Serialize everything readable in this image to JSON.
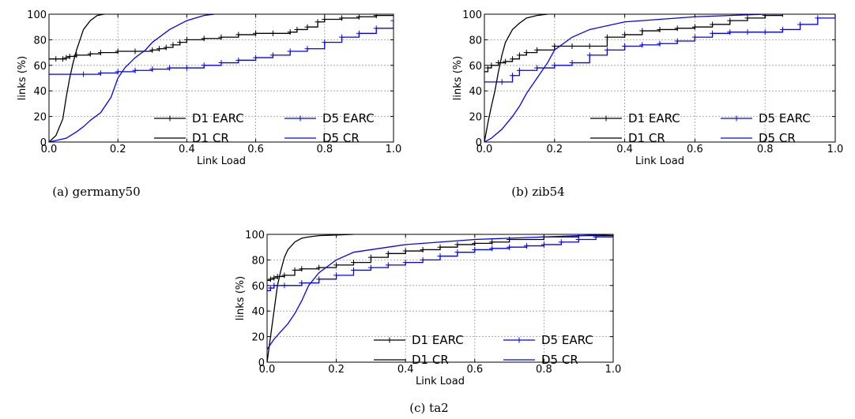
{
  "chart_data": [
    {
      "type": "line",
      "caption": "(a) germany50",
      "xlabel": "Link Load",
      "ylabel": "links (%)",
      "xlim": [
        0,
        1.0
      ],
      "ylim": [
        0,
        100
      ],
      "xticks": [
        "0.0",
        "0.2",
        "0.4",
        "0.6",
        "0.8",
        "1.0"
      ],
      "yticks": [
        "0",
        "20",
        "40",
        "60",
        "80",
        "100"
      ],
      "grid": true,
      "legend": "lower-right",
      "series": [
        {
          "name": "D1 EARC",
          "color": "#000000",
          "markers": true,
          "step": true,
          "x": [
            0,
            0.02,
            0.04,
            0.05,
            0.06,
            0.08,
            0.12,
            0.15,
            0.2,
            0.25,
            0.3,
            0.32,
            0.34,
            0.36,
            0.38,
            0.4,
            0.45,
            0.5,
            0.55,
            0.6,
            0.65,
            0.7,
            0.72,
            0.75,
            0.78,
            0.8,
            0.85,
            0.9,
            0.95,
            1.0
          ],
          "y": [
            65,
            65,
            65,
            66,
            67,
            68,
            69,
            70,
            71,
            71,
            72,
            73,
            74,
            76,
            78,
            80,
            81,
            82,
            84,
            85,
            85,
            86,
            88,
            90,
            94,
            96,
            97,
            98,
            99,
            100
          ]
        },
        {
          "name": "D1 CR",
          "color": "#000000",
          "markers": false,
          "step": false,
          "x": [
            0,
            0.02,
            0.04,
            0.05,
            0.06,
            0.07,
            0.08,
            0.09,
            0.1,
            0.12,
            0.14,
            0.16
          ],
          "y": [
            0,
            5,
            18,
            35,
            50,
            62,
            72,
            80,
            88,
            95,
            99,
            100
          ]
        },
        {
          "name": "D5 EARC",
          "color": "#0000ff",
          "markers": true,
          "step": true,
          "x": [
            0,
            0.1,
            0.15,
            0.2,
            0.25,
            0.3,
            0.35,
            0.4,
            0.45,
            0.5,
            0.55,
            0.6,
            0.65,
            0.7,
            0.75,
            0.8,
            0.85,
            0.9,
            0.95,
            1.0
          ],
          "y": [
            53,
            53,
            54,
            55,
            56,
            57,
            58,
            58,
            60,
            62,
            64,
            66,
            68,
            71,
            73,
            78,
            82,
            85,
            89,
            95
          ]
        },
        {
          "name": "D5 CR",
          "color": "#0000ff",
          "markers": false,
          "step": false,
          "x": [
            0,
            0.05,
            0.08,
            0.1,
            0.12,
            0.15,
            0.18,
            0.2,
            0.22,
            0.25,
            0.28,
            0.3,
            0.35,
            0.4,
            0.45,
            0.48
          ],
          "y": [
            0,
            3,
            8,
            12,
            17,
            23,
            35,
            50,
            58,
            66,
            72,
            78,
            88,
            95,
            99,
            100
          ]
        }
      ]
    },
    {
      "type": "line",
      "caption": "(b) zib54",
      "xlabel": "Link Load",
      "ylabel": "links (%)",
      "xlim": [
        0,
        1.0
      ],
      "ylim": [
        0,
        100
      ],
      "xticks": [
        "0.0",
        "0.2",
        "0.4",
        "0.6",
        "0.8",
        "1.0"
      ],
      "yticks": [
        "0",
        "20",
        "40",
        "60",
        "80",
        "100"
      ],
      "grid": true,
      "legend": "lower-right",
      "series": [
        {
          "name": "D1 EARC",
          "color": "#000000",
          "markers": true,
          "step": true,
          "x": [
            0,
            0.01,
            0.02,
            0.04,
            0.06,
            0.08,
            0.1,
            0.12,
            0.15,
            0.2,
            0.25,
            0.3,
            0.35,
            0.4,
            0.45,
            0.5,
            0.55,
            0.6,
            0.65,
            0.7,
            0.75,
            0.8,
            0.85
          ],
          "y": [
            55,
            58,
            60,
            62,
            63,
            65,
            68,
            70,
            72,
            75,
            75,
            75,
            82,
            84,
            87,
            88,
            89,
            90,
            92,
            95,
            97,
            99,
            100
          ]
        },
        {
          "name": "D1 CR",
          "color": "#000000",
          "markers": false,
          "step": false,
          "x": [
            0,
            0.01,
            0.02,
            0.03,
            0.04,
            0.05,
            0.06,
            0.08,
            0.1,
            0.12,
            0.15,
            0.18
          ],
          "y": [
            0,
            15,
            28,
            40,
            55,
            68,
            78,
            88,
            93,
            97,
            99,
            100
          ]
        },
        {
          "name": "D5 EARC",
          "color": "#0000ff",
          "markers": true,
          "step": true,
          "x": [
            0,
            0.05,
            0.08,
            0.1,
            0.15,
            0.2,
            0.25,
            0.3,
            0.35,
            0.4,
            0.45,
            0.5,
            0.55,
            0.6,
            0.65,
            0.7,
            0.75,
            0.8,
            0.85,
            0.9,
            0.95,
            1.0
          ],
          "y": [
            47,
            47,
            52,
            56,
            58,
            60,
            62,
            68,
            72,
            75,
            76,
            77,
            79,
            82,
            85,
            86,
            86,
            86,
            88,
            92,
            97,
            100
          ]
        },
        {
          "name": "D5 CR",
          "color": "#0000ff",
          "markers": false,
          "step": false,
          "x": [
            0,
            0.02,
            0.05,
            0.08,
            0.1,
            0.12,
            0.15,
            0.18,
            0.2,
            0.25,
            0.3,
            0.4,
            0.5,
            0.6,
            0.7,
            0.8,
            0.85
          ],
          "y": [
            0,
            3,
            10,
            20,
            28,
            38,
            50,
            62,
            72,
            82,
            88,
            94,
            96,
            98,
            99,
            100,
            100
          ]
        }
      ]
    },
    {
      "type": "line",
      "caption": "(c) ta2",
      "xlabel": "Link Load",
      "ylabel": "links (%)",
      "xlim": [
        0,
        1.0
      ],
      "ylim": [
        0,
        100
      ],
      "xticks": [
        "0.0",
        "0.2",
        "0.4",
        "0.6",
        "0.8",
        "1.0"
      ],
      "yticks": [
        "0",
        "20",
        "40",
        "60",
        "80",
        "100"
      ],
      "grid": true,
      "legend": "lower-right",
      "series": [
        {
          "name": "D1 EARC",
          "color": "#000000",
          "markers": true,
          "step": true,
          "x": [
            0,
            0.01,
            0.02,
            0.03,
            0.05,
            0.08,
            0.1,
            0.15,
            0.2,
            0.25,
            0.3,
            0.35,
            0.4,
            0.45,
            0.5,
            0.55,
            0.6,
            0.65,
            0.7,
            0.8,
            0.9,
            1.0
          ],
          "y": [
            64,
            65,
            66,
            67,
            68,
            72,
            73,
            74,
            76,
            78,
            82,
            85,
            87,
            88,
            90,
            92,
            93,
            94,
            96,
            98,
            99,
            100
          ]
        },
        {
          "name": "D1 CR",
          "color": "#000000",
          "markers": false,
          "step": false,
          "x": [
            0,
            0.01,
            0.02,
            0.03,
            0.04,
            0.05,
            0.06,
            0.08,
            0.1,
            0.12,
            0.15,
            0.2,
            0.25
          ],
          "y": [
            0,
            20,
            40,
            60,
            72,
            82,
            88,
            94,
            97,
            98,
            99,
            99.5,
            100
          ]
        },
        {
          "name": "D5 EARC",
          "color": "#0000ff",
          "markers": true,
          "step": true,
          "x": [
            0,
            0.01,
            0.02,
            0.05,
            0.1,
            0.15,
            0.2,
            0.25,
            0.3,
            0.35,
            0.4,
            0.45,
            0.5,
            0.55,
            0.6,
            0.65,
            0.7,
            0.75,
            0.8,
            0.85,
            0.9,
            0.95,
            1.0
          ],
          "y": [
            56,
            58,
            60,
            60,
            62,
            65,
            68,
            72,
            74,
            76,
            78,
            80,
            83,
            86,
            88,
            89,
            90,
            91,
            92,
            94,
            96,
            98,
            100
          ]
        },
        {
          "name": "D5 CR",
          "color": "#0000ff",
          "markers": false,
          "step": false,
          "x": [
            0,
            0.01,
            0.02,
            0.04,
            0.06,
            0.08,
            0.1,
            0.12,
            0.15,
            0.18,
            0.2,
            0.25,
            0.3,
            0.4,
            0.5,
            0.6,
            0.8,
            1.0
          ],
          "y": [
            10,
            14,
            18,
            24,
            30,
            38,
            48,
            60,
            70,
            76,
            80,
            86,
            88,
            92,
            94,
            96,
            98,
            100
          ]
        }
      ]
    }
  ]
}
